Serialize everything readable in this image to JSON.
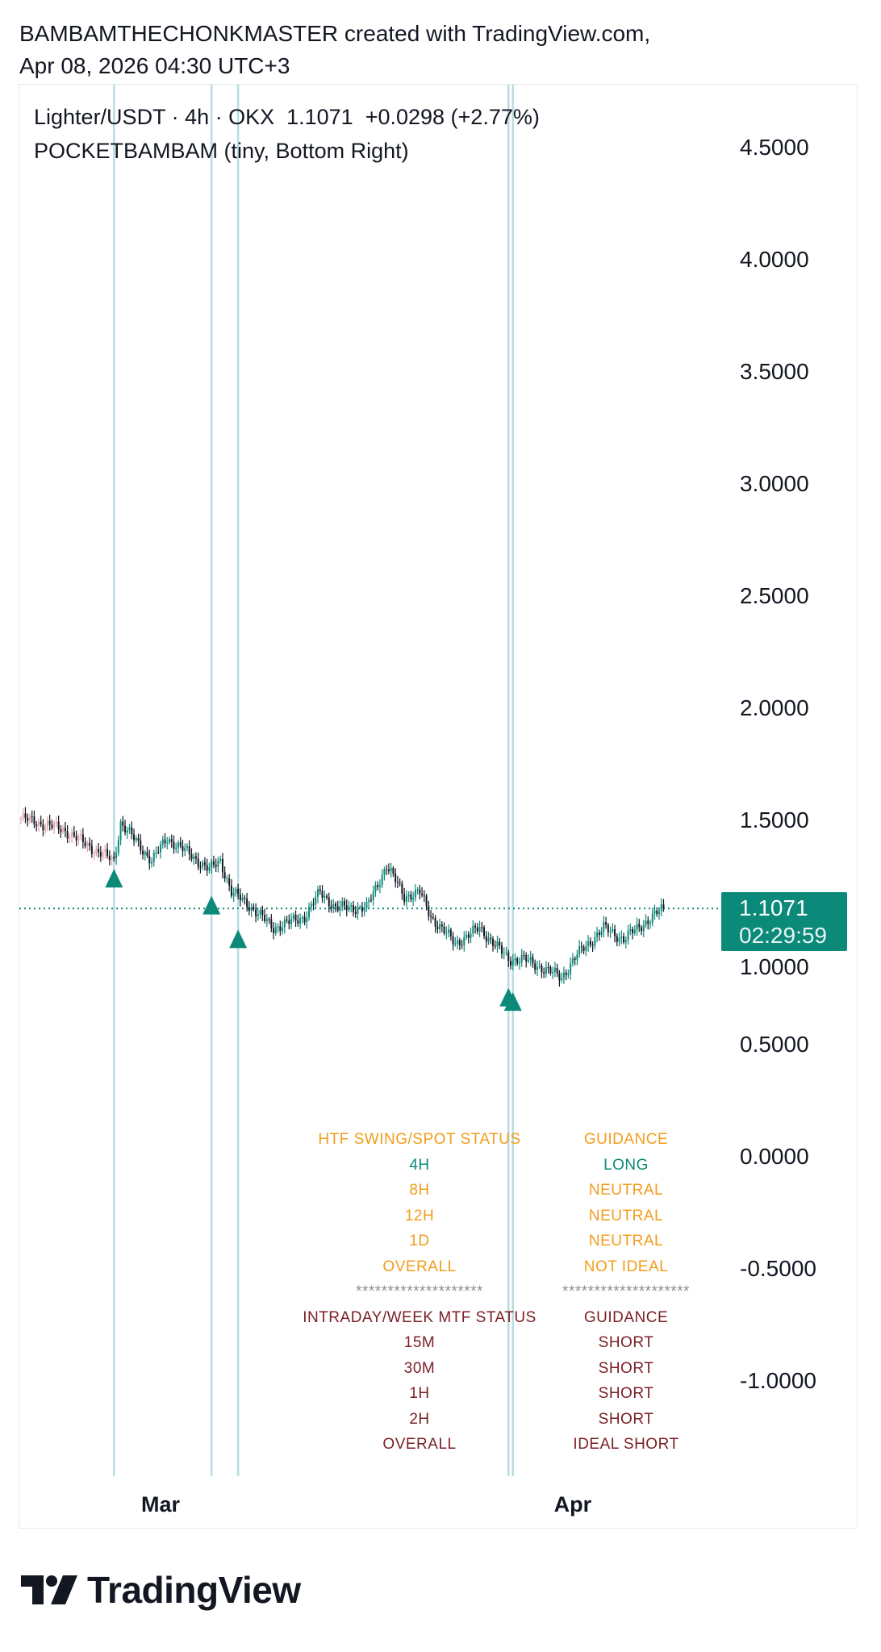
{
  "header": {
    "line1": "BAMBAMTHECHONKMASTER created with TradingView.com,",
    "line2": "Apr 08, 2026 04:30 UTC+3"
  },
  "legend": {
    "symbol_line": "Lighter/USDT · 4h · OKX  1.1071  +0.0298 (+2.77%)",
    "indicator_line": "POCKETBAMBAM (tiny, Bottom Right)"
  },
  "price_tag": {
    "price": "1.1071",
    "countdown": "02:29:59"
  },
  "brand": {
    "name": "TradingView"
  },
  "colors": {
    "up": "#0b8a7a",
    "down": "#131722",
    "early": "#e8a0a8",
    "signal": "#0b8a7a",
    "vline": "#b8dde0",
    "htf": "#f29d1c",
    "long": "#0b8a7a",
    "mtf": "#7a1f26",
    "sep": "#8a8e98"
  },
  "status_table": {
    "htf_rows": [
      {
        "tf": "HTF SWING/SPOT STATUS",
        "guide": "GUIDANCE",
        "tone": "htf"
      },
      {
        "tf": "4H",
        "guide": "LONG",
        "tone": "long"
      },
      {
        "tf": "8H",
        "guide": "NEUTRAL",
        "tone": "htf"
      },
      {
        "tf": "12H",
        "guide": "NEUTRAL",
        "tone": "htf"
      },
      {
        "tf": "1D",
        "guide": "NEUTRAL",
        "tone": "htf"
      },
      {
        "tf": "OVERALL",
        "guide": "NOT IDEAL",
        "tone": "htf"
      }
    ],
    "separator": {
      "tf": "********************",
      "guide": "********************",
      "tone": "sep"
    },
    "mtf_rows": [
      {
        "tf": "INTRADAY/WEEK MTF STATUS",
        "guide": "GUIDANCE",
        "tone": "mtf"
      },
      {
        "tf": "15M",
        "guide": "SHORT",
        "tone": "mtf"
      },
      {
        "tf": "30M",
        "guide": "SHORT",
        "tone": "mtf"
      },
      {
        "tf": "1H",
        "guide": "SHORT",
        "tone": "mtf"
      },
      {
        "tf": "2H",
        "guide": "SHORT",
        "tone": "mtf"
      },
      {
        "tf": "OVERALL",
        "guide": "IDEAL SHORT",
        "tone": "mtf"
      }
    ]
  },
  "chart_data": {
    "type": "candlestick",
    "interval": "4h",
    "y_ticks": [
      "4.5000",
      "4.0000",
      "3.5000",
      "3.0000",
      "2.5000",
      "2.0000",
      "1.5000",
      "1.0000",
      "0.5000",
      "0.0000",
      "-0.5000",
      "-1.0000"
    ],
    "y_tick_values": [
      4.5,
      4.0,
      3.5,
      3.0,
      2.5,
      2.0,
      1.5,
      1.0,
      0.5,
      0.0,
      -0.5,
      -1.0
    ],
    "x_ticks": [
      {
        "label": "Mar",
        "date": "2026-03-01T00:00"
      },
      {
        "label": "Apr",
        "date": "2026-04-01T00:00"
      }
    ],
    "last_price": 1.1071,
    "close_path": [
      [
        "2026-02-18T12:00",
        1.51
      ],
      [
        "2026-02-21T16:00",
        1.46
      ],
      [
        "2026-02-24T00:00",
        1.37
      ],
      [
        "2026-02-25T12:00",
        1.32
      ],
      [
        "2026-02-26T00:00",
        1.49
      ],
      [
        "2026-02-28T08:00",
        1.32
      ],
      [
        "2026-03-01T12:00",
        1.42
      ],
      [
        "2026-03-03T04:00",
        1.35
      ],
      [
        "2026-03-04T16:00",
        1.28
      ],
      [
        "2026-03-05T12:00",
        1.32
      ],
      [
        "2026-03-06T08:00",
        1.18
      ],
      [
        "2026-03-07T12:00",
        1.13
      ],
      [
        "2026-03-09T12:00",
        1.02
      ],
      [
        "2026-03-11T20:00",
        1.07
      ],
      [
        "2026-03-13T00:00",
        1.18
      ],
      [
        "2026-03-14T04:00",
        1.11
      ],
      [
        "2026-03-16T12:00",
        1.11
      ],
      [
        "2026-03-18T00:00",
        1.3
      ],
      [
        "2026-03-19T08:00",
        1.16
      ],
      [
        "2026-03-20T12:00",
        1.18
      ],
      [
        "2026-03-21T08:00",
        1.07
      ],
      [
        "2026-03-23T04:00",
        0.95
      ],
      [
        "2026-03-25T00:00",
        1.02
      ],
      [
        "2026-03-27T04:00",
        0.88
      ],
      [
        "2026-03-28T08:00",
        0.88
      ],
      [
        "2026-03-31T04:00",
        0.8
      ],
      [
        "2026-04-01T08:00",
        0.9
      ],
      [
        "2026-04-02T12:00",
        0.97
      ],
      [
        "2026-04-03T08:00",
        1.02
      ],
      [
        "2026-04-04T20:00",
        0.97
      ],
      [
        "2026-04-06T08:00",
        1.04
      ],
      [
        "2026-04-07T20:00",
        1.1071
      ]
    ],
    "signals": [
      {
        "date": "2026-02-25T12:00",
        "price": 1.24
      },
      {
        "date": "2026-03-04T20:00",
        "price": 1.12
      },
      {
        "date": "2026-03-06T20:00",
        "price": 0.97
      },
      {
        "date": "2026-03-27T04:00",
        "price": 0.71
      },
      {
        "date": "2026-03-27T12:00",
        "price": 0.69
      }
    ],
    "vertical_lines": [
      "2026-02-25T12:00",
      "2026-03-04T20:00",
      "2026-03-06T20:00",
      "2026-03-27T04:00",
      "2026-03-27T12:00"
    ]
  }
}
